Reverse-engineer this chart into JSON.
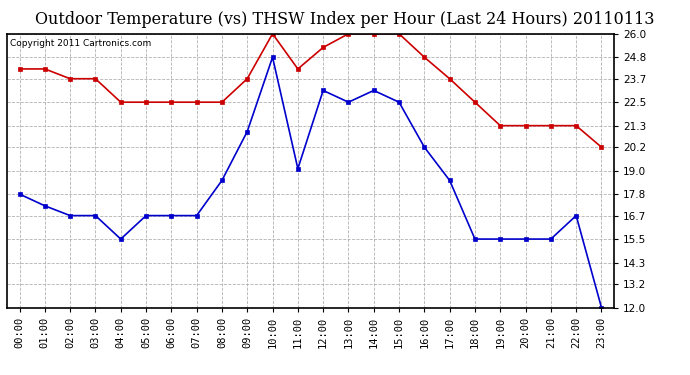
{
  "title": "Outdoor Temperature (vs) THSW Index per Hour (Last 24 Hours) 20110113",
  "copyright": "Copyright 2011 Cartronics.com",
  "hours": [
    "00:00",
    "01:00",
    "02:00",
    "03:00",
    "04:00",
    "05:00",
    "06:00",
    "07:00",
    "08:00",
    "09:00",
    "10:00",
    "11:00",
    "12:00",
    "13:00",
    "14:00",
    "15:00",
    "16:00",
    "17:00",
    "18:00",
    "19:00",
    "20:00",
    "21:00",
    "22:00",
    "23:00"
  ],
  "temp": [
    17.8,
    17.2,
    16.7,
    16.7,
    15.5,
    16.7,
    16.7,
    16.7,
    18.5,
    21.0,
    24.8,
    19.1,
    23.1,
    22.5,
    23.1,
    22.5,
    20.2,
    18.5,
    15.5,
    15.5,
    15.5,
    15.5,
    16.7,
    12.0
  ],
  "thsw": [
    24.2,
    24.2,
    23.7,
    23.7,
    22.5,
    22.5,
    22.5,
    22.5,
    22.5,
    23.7,
    26.0,
    24.2,
    25.3,
    26.0,
    26.0,
    26.0,
    24.8,
    23.7,
    22.5,
    21.3,
    21.3,
    21.3,
    21.3,
    20.2
  ],
  "temp_color": "#0000cc",
  "thsw_color": "#cc0000",
  "bg_color": "#ffffff",
  "grid_color": "#aaaaaa",
  "ylim_min": 12.0,
  "ylim_max": 26.0,
  "yticks": [
    12.0,
    13.2,
    14.3,
    15.5,
    16.7,
    17.8,
    19.0,
    20.2,
    21.3,
    22.5,
    23.7,
    24.8,
    26.0
  ],
  "title_fontsize": 11.5,
  "copyright_fontsize": 6.5,
  "tick_fontsize": 7.5
}
